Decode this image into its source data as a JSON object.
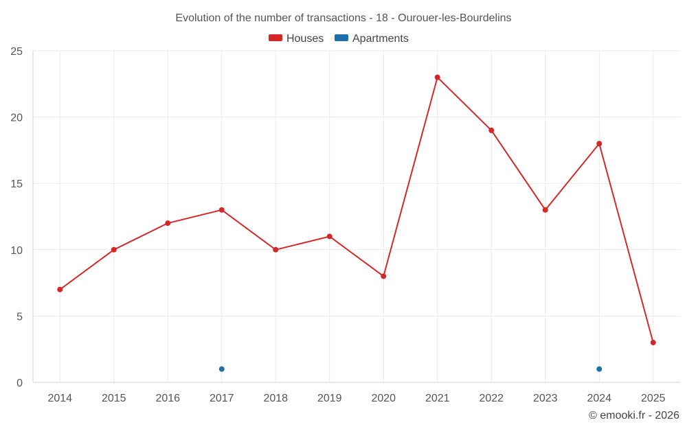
{
  "chart_data": {
    "type": "line",
    "title": "Evolution of the number of transactions - 18 - Ourouer-les-Bourdelins",
    "xlabel": "",
    "ylabel": "",
    "categories": [
      "2014",
      "2015",
      "2016",
      "2017",
      "2018",
      "2019",
      "2020",
      "2021",
      "2022",
      "2023",
      "2024",
      "2025"
    ],
    "ylim": [
      0,
      25
    ],
    "yticks": [
      0,
      5,
      10,
      15,
      20,
      25
    ],
    "grid": true,
    "legend_position": "top-center",
    "series": [
      {
        "name": "Houses",
        "color": "#d62728",
        "values": [
          7,
          10,
          12,
          13,
          10,
          11,
          8,
          23,
          19,
          13,
          18,
          3
        ]
      },
      {
        "name": "Apartments",
        "color": "#1f6fa8",
        "values": [
          null,
          null,
          null,
          1,
          null,
          null,
          null,
          null,
          null,
          null,
          1,
          null
        ]
      }
    ]
  },
  "credit": "© emooki.fr - 2026"
}
